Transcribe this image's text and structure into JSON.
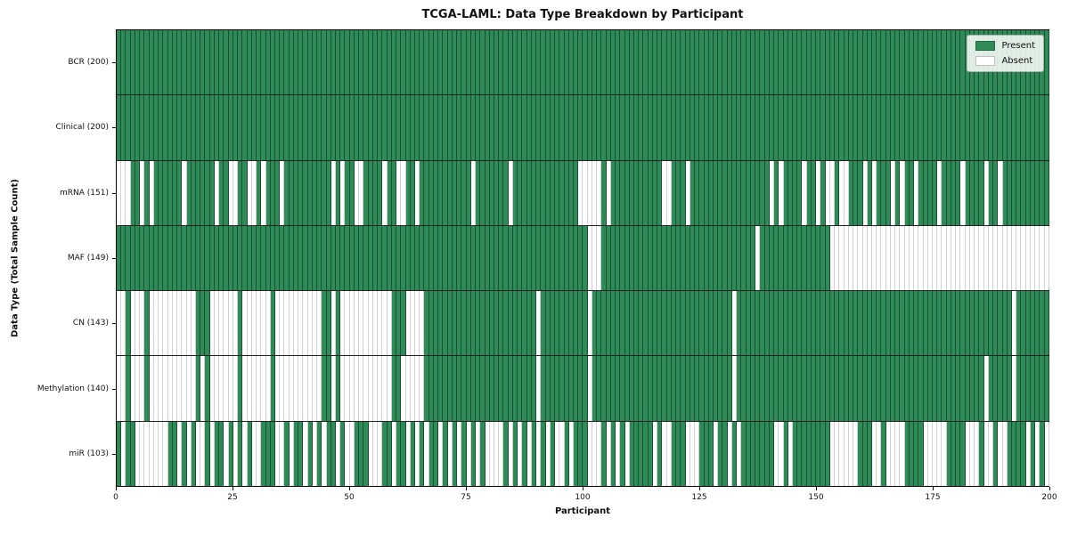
{
  "title": "TCGA-LAML: Data Type Breakdown by Participant",
  "chart_data": {
    "type": "heatmap",
    "title": "TCGA-LAML: Data Type Breakdown by Participant",
    "xlabel": "Participant",
    "ylabel": "Data Type (Total Sample Count)",
    "x_range": [
      0,
      200
    ],
    "x_ticks": [
      0,
      25,
      50,
      75,
      100,
      125,
      150,
      175,
      200
    ],
    "n_participants": 200,
    "grid": false,
    "colors": {
      "present": "#2e8b57",
      "absent": "#ffffff"
    },
    "legend": {
      "position": "upper right",
      "entries": [
        {
          "label": "Present",
          "color": "#2e8b57"
        },
        {
          "label": "Absent",
          "color": "#ffffff"
        }
      ]
    },
    "rows": [
      {
        "label": "BCR (200)",
        "total": 200,
        "pattern": "11111111111111111111111111111111111111111111111111111111111111111111111111111111111111111111111111111111111111111111111111111111111111111111111111111111111111111111111111111111111111111111111111111111"
      },
      {
        "label": "Clinical (200)",
        "total": 200,
        "pattern": "11111111111111111111111111111111111111111111111111111111111111111111111111111111111111111111111111111111111111111111111111111111111111111111111111111111111111111111111111111111111111111111111111111111"
      },
      {
        "label": "mRNA (151)",
        "total": 151,
        "pattern": "00011010111111011111101100110010111011111111110101100111101100110111111111110111111101111111111111100000101111111111100111011111111111111111010111101101001001110101110101101111011110111101101111111111"
      },
      {
        "label": "MAF (149)",
        "total": 149,
        "pattern": "11111111111111111111111111111111111111111111111111111111111111111111111111111111111111111111111111111000111111111111111111111111111111111011111111111111100000000000000000000000000000000000000000000000"
      },
      {
        "label": "CN (143)",
        "total": 143,
        "pattern": "00100010000000000111000000100000010000000000110100000000000111000011111111111111111111111101111111111011111111111111111111111111111101111111111111111111111111111111111111111111111111111111111101111111"
      },
      {
        "label": "Methylation (140)",
        "total": 140,
        "pattern": "00100010000000000101000000100000010000000000110100000000000110000011111111111111111111111101111111111011111111111111111111111111111101111111111111111111111111111111111111111111111111111101111101111111"
      },
      {
        "label": "miR (103)",
        "total": 103,
        "pattern": "10110000000110101001011010101001110010110101011010011100011011010101101010101010000101010101010010111000101010111110100111000111011010111111100101111111100000011100100001111000001111000100100111101010"
      }
    ]
  }
}
